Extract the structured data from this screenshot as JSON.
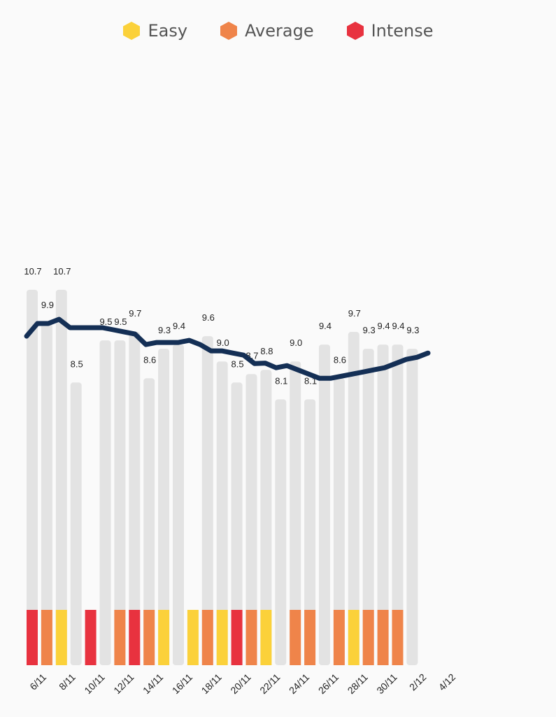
{
  "legend": [
    {
      "label": "Easy",
      "color": "#fbd13a"
    },
    {
      "label": "Average",
      "color": "#ef844a"
    },
    {
      "label": "Intense",
      "color": "#e8323f"
    }
  ],
  "chart_data": {
    "type": "bar",
    "title": "",
    "xlabel": "",
    "ylabel": "",
    "x_tick_labels": [
      "6/11",
      "8/11",
      "10/11",
      "12/11",
      "14/11",
      "16/11",
      "18/11",
      "20/11",
      "22/11",
      "24/11",
      "26/11",
      "28/11",
      "30/11",
      "2/12",
      "4/12"
    ],
    "days": [
      {
        "value": 10.7,
        "intensity": "intense"
      },
      {
        "value": 9.9,
        "intensity": "average"
      },
      {
        "value": 10.7,
        "intensity": "easy"
      },
      {
        "value": 8.5,
        "intensity": null
      },
      {
        "value": null,
        "intensity": "intense"
      },
      {
        "value": 9.5,
        "intensity": null
      },
      {
        "value": 9.5,
        "intensity": "average"
      },
      {
        "value": 9.7,
        "intensity": "intense"
      },
      {
        "value": 8.6,
        "intensity": "average"
      },
      {
        "value": 9.3,
        "intensity": "easy"
      },
      {
        "value": 9.4,
        "intensity": null
      },
      {
        "value": null,
        "intensity": "easy"
      },
      {
        "value": 9.6,
        "intensity": "average"
      },
      {
        "value": 9.0,
        "intensity": "easy"
      },
      {
        "value": 8.5,
        "intensity": "intense"
      },
      {
        "value": 8.7,
        "intensity": "average"
      },
      {
        "value": 8.8,
        "intensity": "easy"
      },
      {
        "value": 8.1,
        "intensity": null
      },
      {
        "value": 9.0,
        "intensity": "average"
      },
      {
        "value": 8.1,
        "intensity": "average"
      },
      {
        "value": 9.4,
        "intensity": null
      },
      {
        "value": 8.6,
        "intensity": "average"
      },
      {
        "value": 9.7,
        "intensity": "easy"
      },
      {
        "value": 9.3,
        "intensity": "average"
      },
      {
        "value": 9.4,
        "intensity": "average"
      },
      {
        "value": 9.4,
        "intensity": "average"
      },
      {
        "value": 9.3,
        "intensity": null
      }
    ],
    "trend_series": [
      9.6,
      9.9,
      9.9,
      10.0,
      9.8,
      9.8,
      9.8,
      9.8,
      9.75,
      9.7,
      9.65,
      9.4,
      9.45,
      9.45,
      9.45,
      9.5,
      9.4,
      9.25,
      9.25,
      9.2,
      9.15,
      8.95,
      8.96,
      8.85,
      8.9,
      8.8,
      8.7,
      8.6,
      8.6,
      8.65,
      8.7,
      8.75,
      8.8,
      8.85,
      8.95,
      9.05,
      9.1,
      9.2
    ],
    "colors": {
      "easy": "#fbd13a",
      "average": "#ef844a",
      "intense": "#e8323f",
      "bar": "#e3e3e3",
      "line": "#142f55"
    }
  }
}
